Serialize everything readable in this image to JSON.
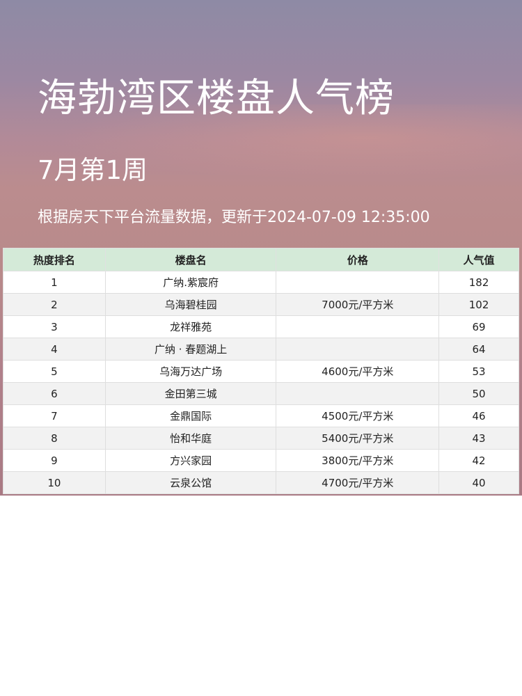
{
  "header": {
    "title": "海勃湾区楼盘人气榜",
    "subtitle": "7月第1周",
    "note": "根据房天下平台流量数据，更新于2024-07-09 12:35:00"
  },
  "table": {
    "columns": [
      "热度排名",
      "楼盘名",
      "价格",
      "人气值"
    ],
    "rows": [
      [
        "1",
        "广纳.紫宸府",
        "",
        "182"
      ],
      [
        "2",
        "乌海碧桂园",
        "7000元/平方米",
        "102"
      ],
      [
        "3",
        "龙祥雅苑",
        "",
        "69"
      ],
      [
        "4",
        "广纳 · 春题湖上",
        "",
        "64"
      ],
      [
        "5",
        "乌海万达广场",
        "4600元/平方米",
        "53"
      ],
      [
        "6",
        "金田第三城",
        "",
        "50"
      ],
      [
        "7",
        "金鼎国际",
        "4500元/平方米",
        "46"
      ],
      [
        "8",
        "怡和华庭",
        "5400元/平方米",
        "43"
      ],
      [
        "9",
        "方兴家园",
        "3800元/平方米",
        "42"
      ],
      [
        "10",
        "云泉公馆",
        "4700元/平方米",
        "40"
      ]
    ]
  },
  "colors": {
    "header_bg": "#d4ead8",
    "zebra": "#f2f2f2"
  }
}
